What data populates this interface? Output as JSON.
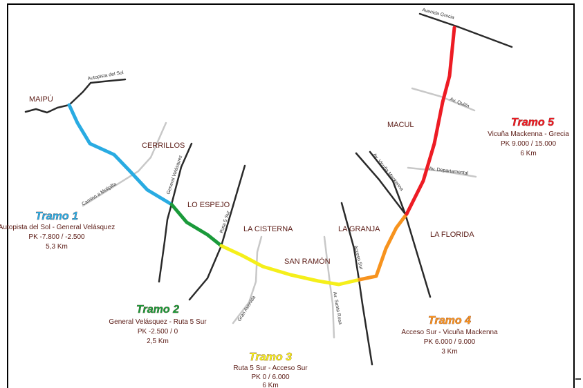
{
  "colors": {
    "tramo1": "#29abe2",
    "tramo2": "#1a9a3a",
    "tramo3": "#f5ef1a",
    "tramo4": "#f7931e",
    "tramo5": "#ed1c24",
    "road_dark": "#2a2a2a",
    "road_light": "#c8c8c8",
    "label": "#5a1a14"
  },
  "communes": {
    "maipu": "MAIPÚ",
    "cerrillos": "CERRILLOS",
    "lo_espejo": "LO ESPEJO",
    "la_cisterna": "LA CISTERNA",
    "san_ramon": "SAN RAMÓN",
    "la_granja": "LA GRANJA",
    "macul": "MACUL",
    "la_florida": "LA FLORIDA"
  },
  "roads": {
    "autopista_sol": "Autopista del Sol",
    "camino_melipilla": "Camino a Melipilla",
    "general_velasquez": "General Velásquez",
    "ruta5_sur": "Ruta 5 Sur",
    "gran_avenida": "Gran Avenida",
    "santa_rosa": "Av. Santa Rosa",
    "acceso_sur": "Acceso Sur",
    "vicuna_mackenna": "Av. Vicuña Mackenna",
    "departamental": "Av. Departamental",
    "quilin": "Av. Quilín",
    "grecia": "Avenida Grecia"
  },
  "tramos": {
    "t1": {
      "title": "Tramo 1",
      "line1": "Autopista del Sol - General Velásquez",
      "line2": "PK -7.800 / -2.500",
      "line3": "5,3 Km"
    },
    "t2": {
      "title": "Tramo 2",
      "line1": "General Velásquez - Ruta 5 Sur",
      "line2": "PK -2.500 / 0",
      "line3": "2,5 Km"
    },
    "t3": {
      "title": "Tramo 3",
      "line1": "Ruta 5 Sur - Acceso Sur",
      "line2": "PK 0 / 6.000",
      "line3": "6 Km"
    },
    "t4": {
      "title": "Tramo 4",
      "line1": "Acceso Sur - Vicuña Mackenna",
      "line2": "PK 6.000 / 9.000",
      "line3": "3 Km"
    },
    "t5": {
      "title": "Tramo 5",
      "line1": "Vicuña Mackenna - Grecia",
      "line2": "PK 9.000 / 15.000",
      "line3": "6 Km"
    }
  }
}
